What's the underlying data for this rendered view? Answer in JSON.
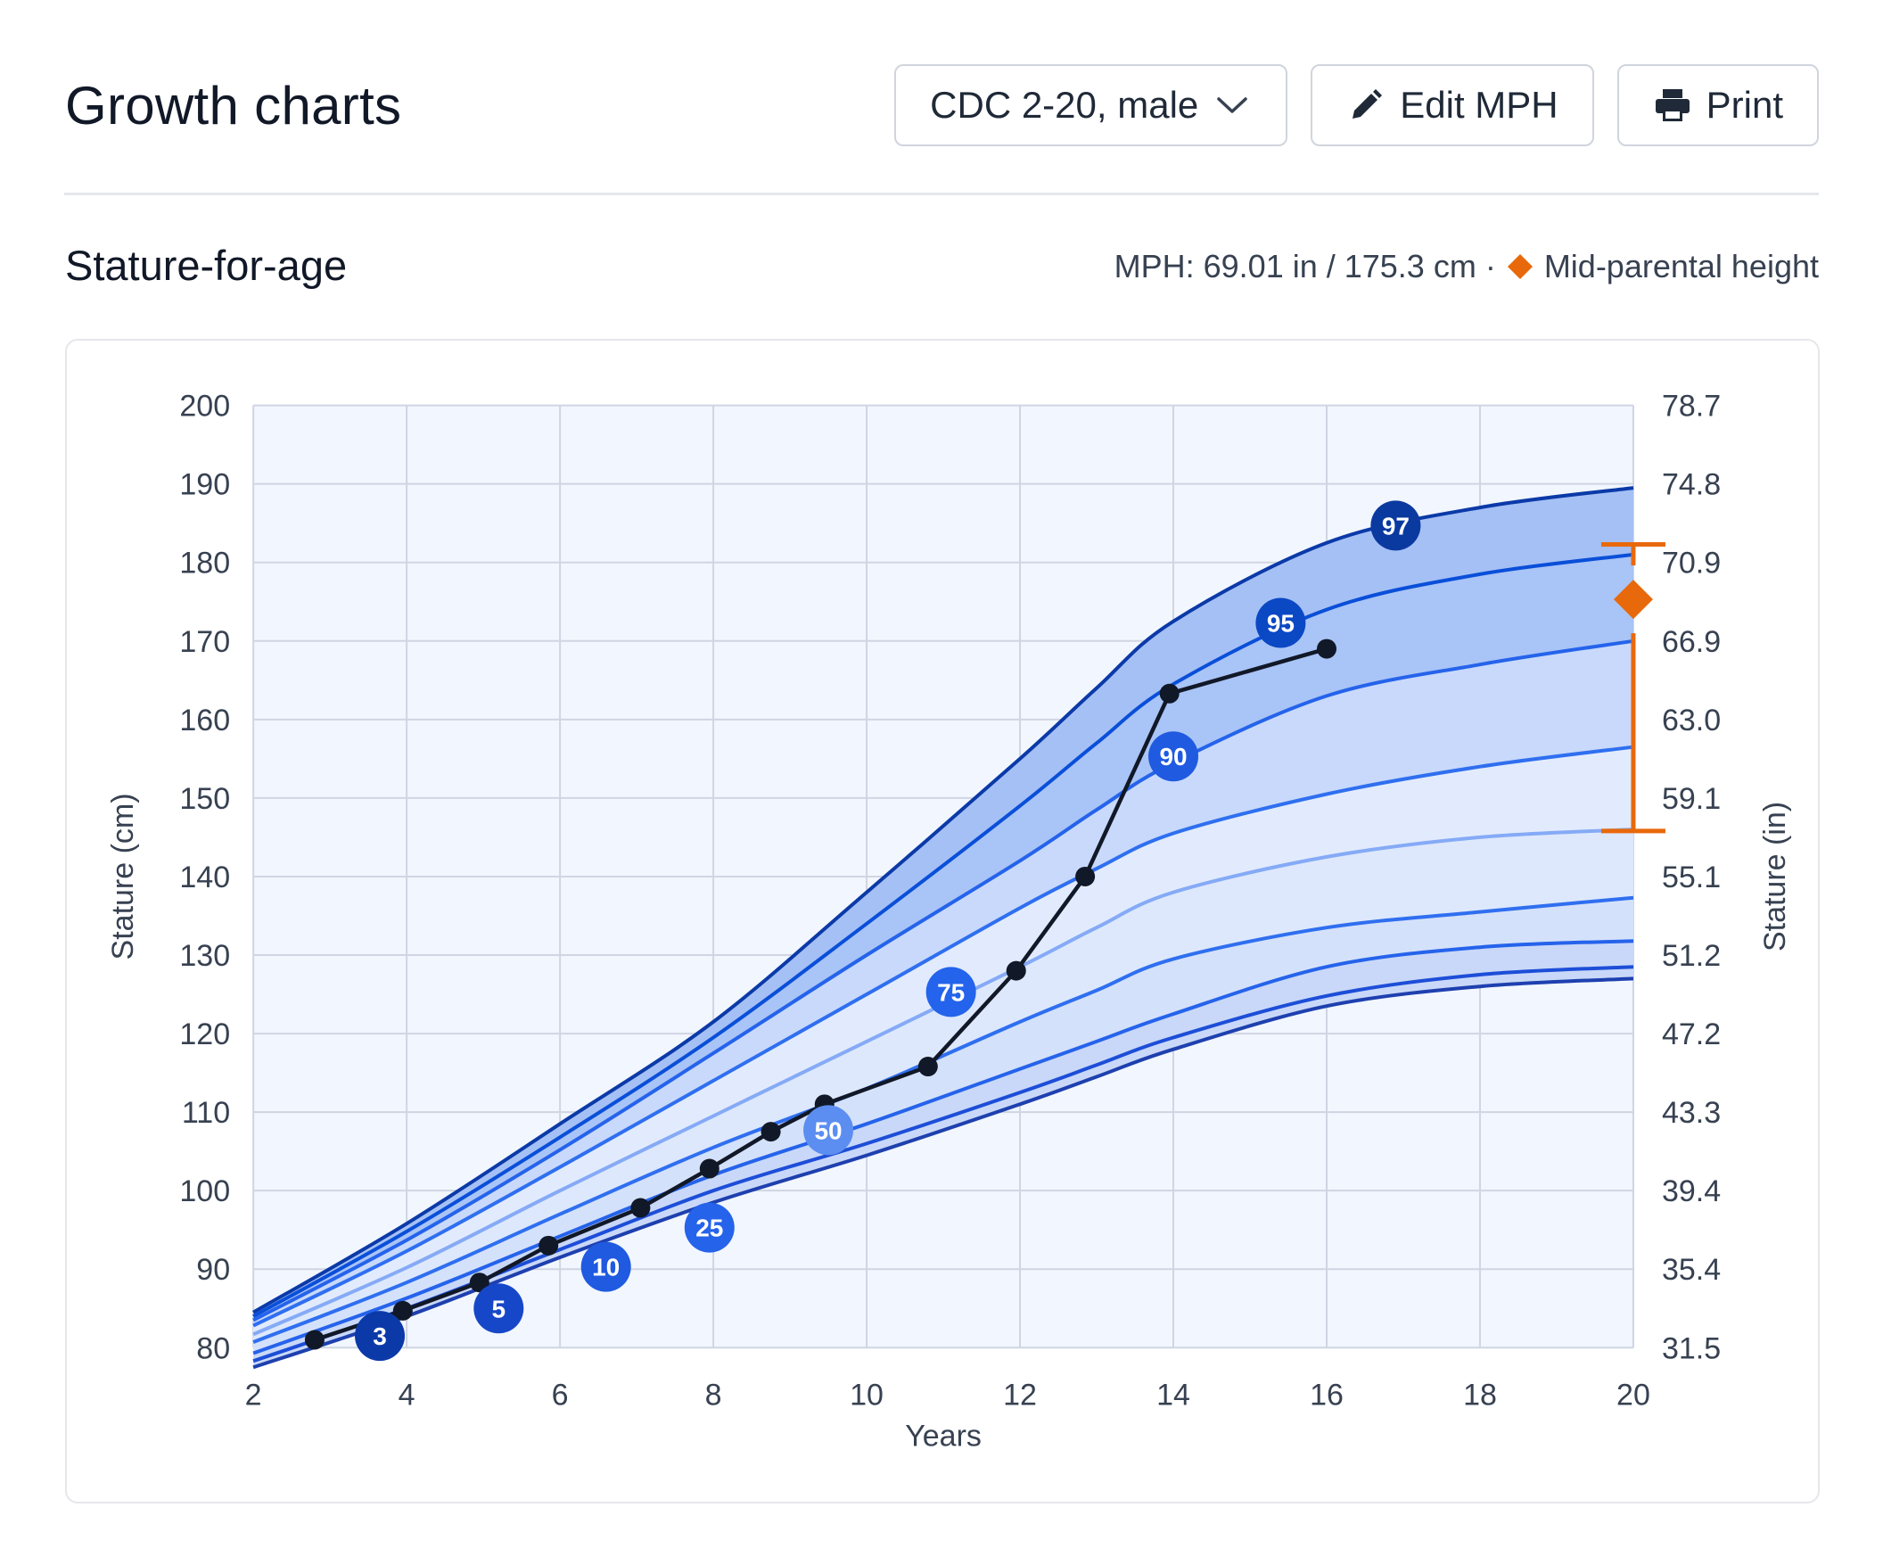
{
  "header": {
    "title": "Growth charts",
    "chart_selector_label": "CDC 2-20, male",
    "edit_label": "Edit MPH",
    "print_label": "Print"
  },
  "section": {
    "title": "Stature-for-age",
    "mph_text": "MPH: 69.01 in / 175.3 cm ·",
    "legend_label": "Mid-parental height"
  },
  "colors": {
    "mph": "#e8690b",
    "patient": "#111827"
  },
  "chart_data": {
    "type": "line",
    "title": "Stature-for-age",
    "xlabel": "Years",
    "ylabel": "Stature (cm)",
    "ylabel_right": "Stature (in)",
    "xlim": [
      2,
      20
    ],
    "ylim": [
      80,
      200
    ],
    "x_ticks": [
      2,
      4,
      6,
      8,
      10,
      12,
      14,
      16,
      18,
      20
    ],
    "y_ticks": [
      80,
      90,
      100,
      110,
      120,
      130,
      140,
      150,
      160,
      170,
      180,
      190,
      200
    ],
    "y_ticks_right": [
      "31.5",
      "35.4",
      "39.4",
      "43.3",
      "47.2",
      "51.2",
      "55.1",
      "59.1",
      "63.0",
      "66.9",
      "70.9",
      "74.8",
      "78.7"
    ],
    "grid": true,
    "percentile_x": [
      2,
      4,
      6,
      8,
      10,
      12,
      13,
      14,
      16,
      18,
      20
    ],
    "percentiles": [
      {
        "name": "3",
        "values": [
          77.5,
          84.0,
          91.5,
          98.5,
          104.5,
          111.0,
          114.5,
          118.0,
          123.5,
          126.0,
          127.0
        ],
        "label_x": 3.65,
        "label_y": 81.5,
        "color": "#1e40af",
        "badge": "#0b3aa8"
      },
      {
        "name": "5",
        "values": [
          78.3,
          85.0,
          92.5,
          100.0,
          106.0,
          112.5,
          116.0,
          119.5,
          124.8,
          127.5,
          128.5
        ],
        "label_x": 5.2,
        "label_y": 85.0,
        "color": "#1d4ed8",
        "badge": "#1747c9"
      },
      {
        "name": "10",
        "values": [
          79.3,
          86.3,
          94.2,
          102.0,
          108.5,
          115.5,
          119.0,
          122.5,
          128.5,
          131.0,
          131.8
        ],
        "label_x": 6.6,
        "label_y": 90.3,
        "color": "#2563eb",
        "badge": "#1f5ae0"
      },
      {
        "name": "25",
        "values": [
          80.7,
          88.3,
          97.0,
          105.5,
          113.0,
          121.5,
          125.5,
          129.5,
          133.5,
          135.5,
          137.3
        ],
        "label_x": 7.95,
        "label_y": 95.3,
        "color": "#2f6ff0",
        "badge": "#2563eb"
      },
      {
        "name": "50",
        "values": [
          81.7,
          90.2,
          100.0,
          109.5,
          119.0,
          128.5,
          133.5,
          138.0,
          142.5,
          145.0,
          146.0
        ],
        "label_x": 9.5,
        "label_y": 107.7,
        "color": "#85aaf6",
        "badge": "#5b8ef0"
      },
      {
        "name": "75",
        "values": [
          82.8,
          92.3,
          103.0,
          114.0,
          125.0,
          136.0,
          141.0,
          145.5,
          150.5,
          154.0,
          156.5
        ],
        "label_x": 11.1,
        "label_y": 125.3,
        "color": "#2f6ff0",
        "badge": "#2463eb"
      },
      {
        "name": "90",
        "values": [
          83.5,
          93.7,
          105.2,
          117.5,
          130.0,
          142.0,
          148.5,
          154.5,
          163.0,
          167.0,
          170.0
        ],
        "label_x": 14.0,
        "label_y": 155.3,
        "color": "#2563eb",
        "badge": "#1f5ae0"
      },
      {
        "name": "95",
        "values": [
          84.0,
          94.8,
          106.8,
          119.5,
          134.0,
          149.0,
          157.0,
          164.5,
          174.0,
          178.5,
          181.0
        ],
        "label_x": 15.4,
        "label_y": 172.3,
        "color": "#0a4fd9",
        "badge": "#0b48c4"
      },
      {
        "name": "97",
        "values": [
          84.5,
          95.8,
          108.5,
          121.5,
          138.0,
          155.0,
          164.0,
          172.5,
          182.5,
          187.0,
          189.5
        ],
        "label_x": 16.9,
        "label_y": 184.7,
        "color": "#0b3aa8",
        "badge": "#0a3aa0"
      }
    ],
    "patient": {
      "x": [
        2.8,
        3.95,
        4.95,
        5.85,
        7.05,
        7.95,
        8.75,
        9.45,
        10.8,
        11.95,
        12.85,
        13.95,
        16.0
      ],
      "y": [
        81.0,
        84.7,
        88.3,
        93.0,
        97.8,
        102.8,
        107.5,
        111.0,
        115.8,
        128.0,
        140.0,
        163.3,
        169.0
      ]
    },
    "mph": {
      "x": 20,
      "value_cm": 175.3,
      "range_cm": [
        182.3,
        145.8
      ],
      "value_in": 69.01
    }
  }
}
